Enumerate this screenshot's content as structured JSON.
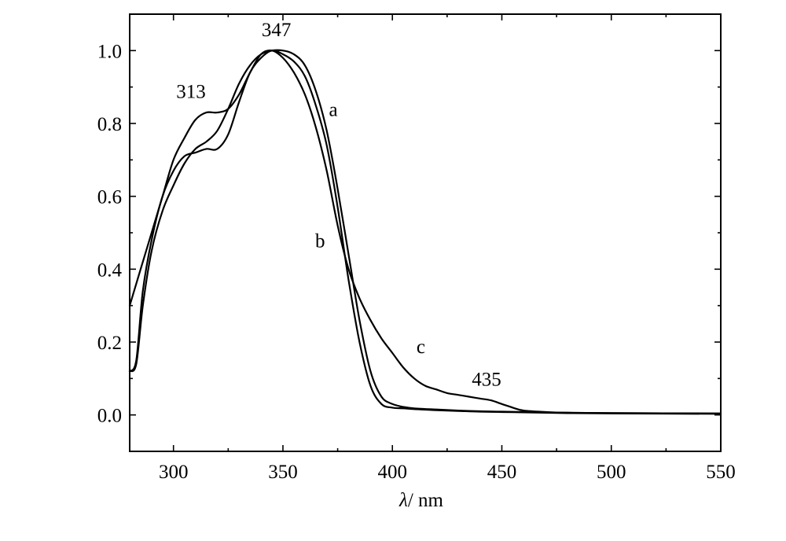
{
  "chart_data": {
    "type": "line",
    "title": "",
    "xlabel_symbol": "λ",
    "xlabel_unit": "/ nm",
    "ylabel": "",
    "xlim": [
      280,
      550
    ],
    "ylim": [
      -0.1,
      1.1
    ],
    "grid": false,
    "x_ticks": [
      300,
      350,
      400,
      450,
      500,
      550
    ],
    "y_ticks": [
      0.0,
      0.2,
      0.4,
      0.6,
      0.8,
      1.0
    ],
    "x_tick_labels": [
      "300",
      "350",
      "400",
      "450",
      "500",
      "550"
    ],
    "y_tick_labels": [
      "0.0",
      "0.2",
      "0.4",
      "0.6",
      "0.8",
      "1.0"
    ],
    "series": [
      {
        "name": "a",
        "x": [
          280,
          283,
          286,
          290,
          295,
          300,
          305,
          310,
          315,
          320,
          325,
          330,
          335,
          340,
          345,
          350,
          355,
          360,
          365,
          370,
          375,
          380,
          385,
          390,
          395,
          400,
          405,
          410,
          420,
          430,
          440,
          450,
          460,
          470,
          480,
          500,
          550
        ],
        "y": [
          0.12,
          0.14,
          0.3,
          0.45,
          0.56,
          0.63,
          0.69,
          0.73,
          0.75,
          0.78,
          0.84,
          0.91,
          0.96,
          0.99,
          1.0,
          1.0,
          0.99,
          0.96,
          0.89,
          0.78,
          0.62,
          0.44,
          0.26,
          0.12,
          0.05,
          0.03,
          0.022,
          0.018,
          0.015,
          0.012,
          0.01,
          0.009,
          0.008,
          0.007,
          0.006,
          0.005,
          0.004
        ]
      },
      {
        "name": "b",
        "x": [
          280,
          283,
          286,
          290,
          295,
          300,
          305,
          310,
          315,
          320,
          325,
          330,
          335,
          340,
          345,
          350,
          355,
          360,
          365,
          370,
          375,
          380,
          385,
          390,
          395,
          400,
          405,
          410,
          420,
          430,
          440,
          450,
          460,
          470,
          480,
          500,
          550
        ],
        "y": [
          0.12,
          0.15,
          0.34,
          0.48,
          0.6,
          0.67,
          0.71,
          0.72,
          0.73,
          0.73,
          0.77,
          0.86,
          0.94,
          0.98,
          1.0,
          0.99,
          0.97,
          0.93,
          0.85,
          0.74,
          0.57,
          0.37,
          0.2,
          0.08,
          0.03,
          0.02,
          0.018,
          0.016,
          0.013,
          0.011,
          0.009,
          0.008,
          0.007,
          0.006,
          0.005,
          0.004,
          0.003
        ]
      },
      {
        "name": "c",
        "x": [
          280,
          285,
          290,
          295,
          300,
          305,
          310,
          315,
          320,
          325,
          330,
          335,
          340,
          345,
          350,
          355,
          360,
          365,
          370,
          375,
          380,
          385,
          390,
          395,
          400,
          405,
          410,
          415,
          420,
          425,
          430,
          435,
          440,
          445,
          450,
          455,
          460,
          470,
          480,
          500,
          550
        ],
        "y": [
          0.3,
          0.4,
          0.5,
          0.6,
          0.7,
          0.76,
          0.81,
          0.83,
          0.83,
          0.84,
          0.88,
          0.94,
          0.99,
          1.0,
          0.98,
          0.94,
          0.88,
          0.79,
          0.67,
          0.52,
          0.4,
          0.32,
          0.26,
          0.21,
          0.17,
          0.13,
          0.1,
          0.08,
          0.07,
          0.06,
          0.055,
          0.05,
          0.045,
          0.04,
          0.03,
          0.02,
          0.012,
          0.008,
          0.006,
          0.005,
          0.004
        ]
      }
    ],
    "annotations": [
      {
        "text": "347",
        "x": 347,
        "y": 1.04
      },
      {
        "text": "313",
        "x": 308,
        "y": 0.87
      },
      {
        "text": "435",
        "x": 443,
        "y": 0.08
      }
    ],
    "series_labels": [
      {
        "text": "a",
        "x": 373,
        "y": 0.82
      },
      {
        "text": "b",
        "x": 367,
        "y": 0.46
      },
      {
        "text": "c",
        "x": 413,
        "y": 0.17
      }
    ]
  }
}
